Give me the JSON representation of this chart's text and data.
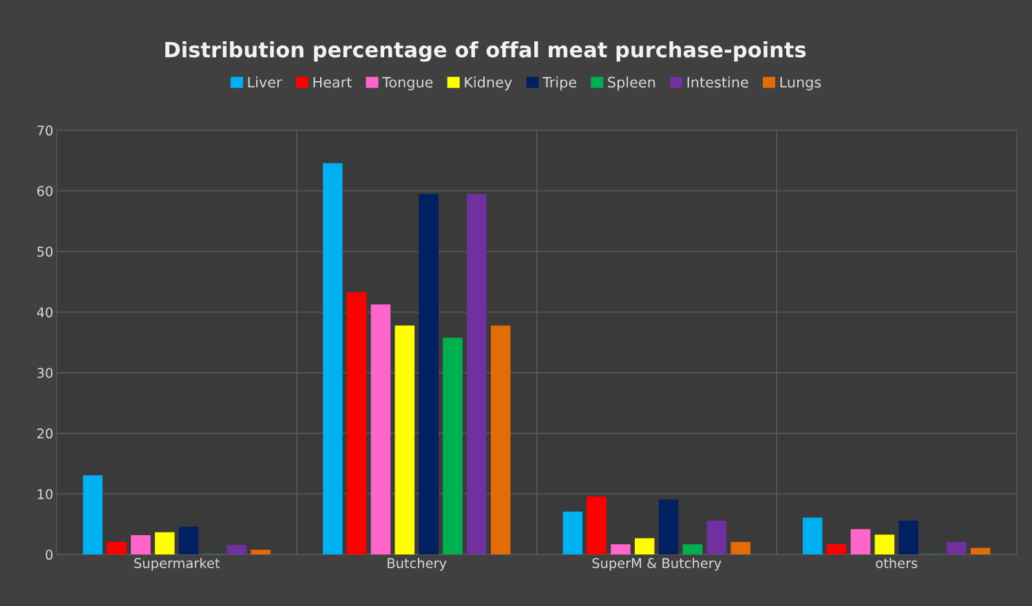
{
  "chart_data": {
    "type": "bar",
    "title": "Distribution percentage of offal meat purchase-points",
    "categories": [
      "Supermarket",
      "Butchery",
      "SuperM & Butchery",
      "others"
    ],
    "series": [
      {
        "name": "Liver",
        "color": "#00b0f0",
        "values": [
          13,
          64.5,
          7,
          6
        ]
      },
      {
        "name": "Heart",
        "color": "#ff0000",
        "values": [
          2,
          43.2,
          9.5,
          1.6
        ]
      },
      {
        "name": "Tongue",
        "color": "#ff66cc",
        "values": [
          3.1,
          41.2,
          1.6,
          4.1
        ]
      },
      {
        "name": "Kidney",
        "color": "#ffff00",
        "values": [
          3.6,
          37.7,
          2.6,
          3.2
        ]
      },
      {
        "name": "Tripe",
        "color": "#002060",
        "values": [
          4.5,
          59.4,
          9,
          5.5
        ]
      },
      {
        "name": "Spleen",
        "color": "#00b050",
        "values": [
          0,
          35.7,
          1.6,
          0
        ]
      },
      {
        "name": "Intestine",
        "color": "#7030a0",
        "values": [
          1.5,
          59.4,
          5.5,
          2
        ]
      },
      {
        "name": "Lungs",
        "color": "#e36c09",
        "values": [
          0.7,
          37.7,
          2,
          1
        ]
      }
    ],
    "ylim": [
      0,
      70
    ],
    "yticks": [
      0,
      10,
      20,
      30,
      40,
      50,
      60,
      70
    ],
    "grid": "y",
    "legend": "top"
  }
}
